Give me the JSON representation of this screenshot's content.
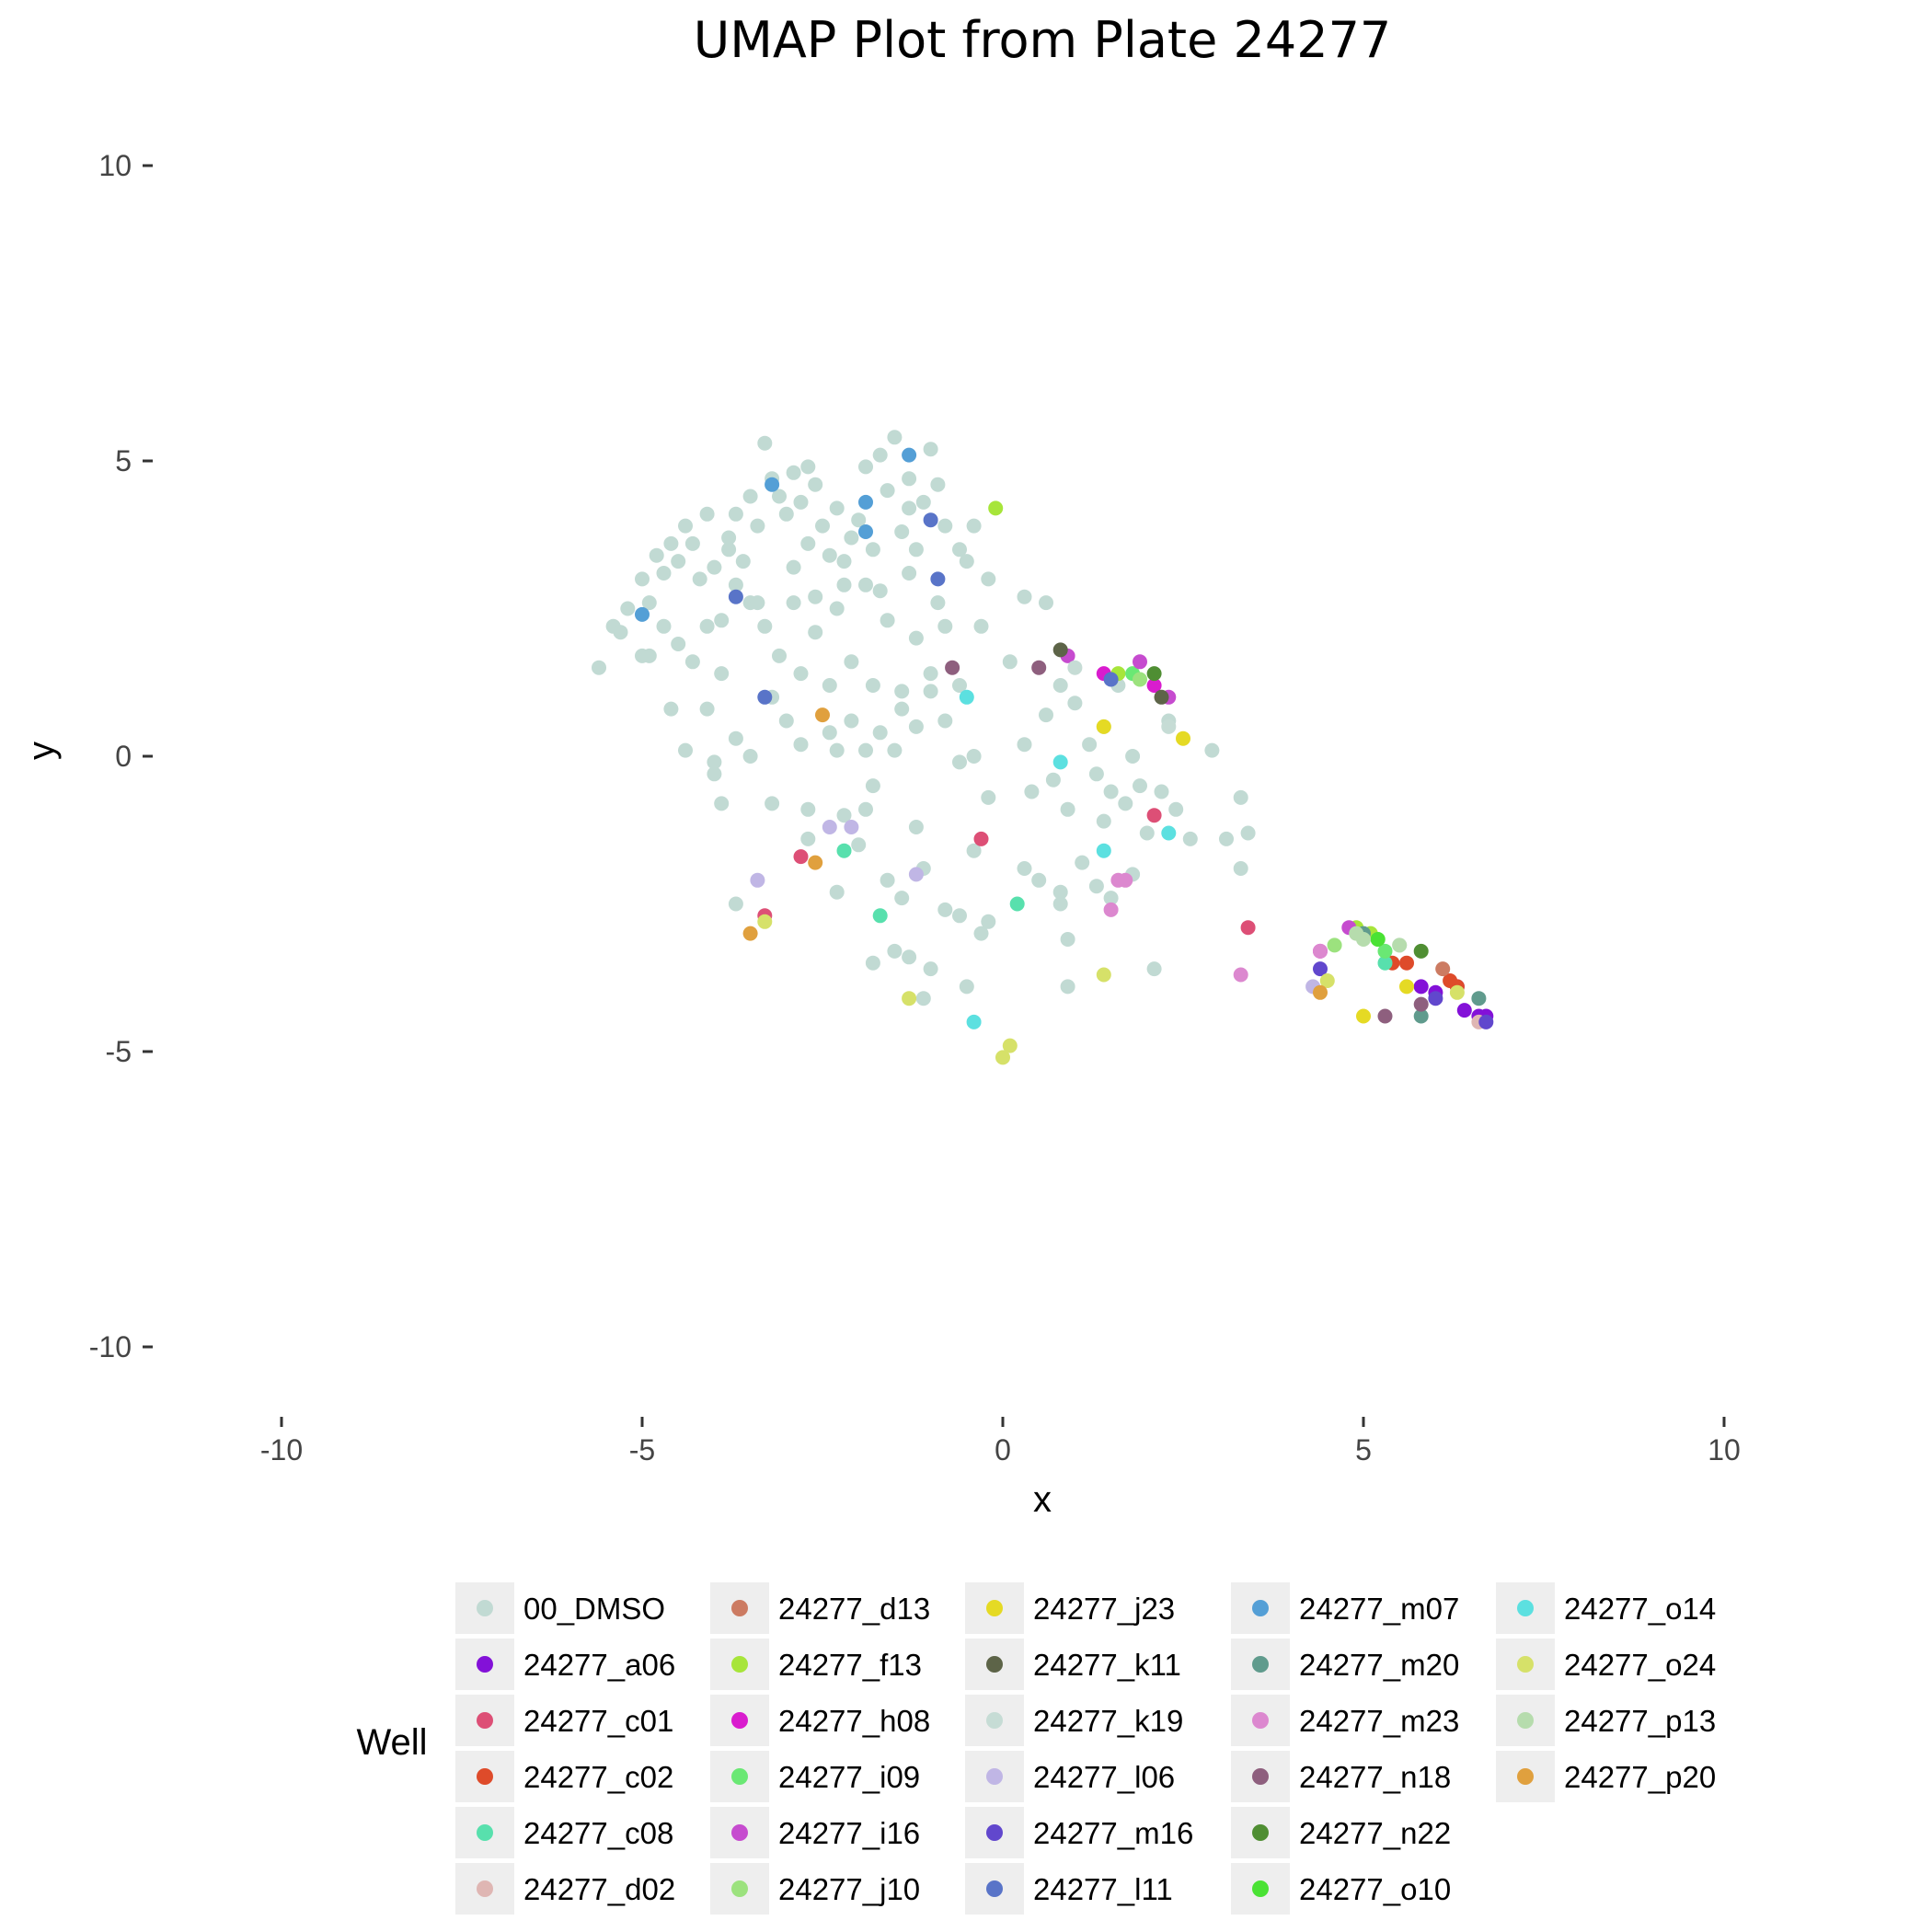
{
  "chart_data": {
    "type": "scatter",
    "title": "UMAP Plot from Plate 24277",
    "xlabel": "x",
    "ylabel": "y",
    "xlim": [
      -10,
      10
    ],
    "ylim": [
      -10,
      10
    ],
    "x_ticks": [
      "-10",
      "-5",
      "0",
      "5",
      "10"
    ],
    "y_ticks": [
      "10",
      "5",
      "0",
      "-5",
      "-10"
    ],
    "grid": false,
    "legend_title": "Well",
    "legend_position": "bottom",
    "series": [
      {
        "name": "00_DMSO",
        "color": "#c1dad3",
        "points": [
          [
            -5.6,
            1.5
          ],
          [
            -5.4,
            2.2
          ],
          [
            -5.3,
            2.1
          ],
          [
            -5.2,
            2.5
          ],
          [
            -5.0,
            3.0
          ],
          [
            -5.0,
            1.7
          ],
          [
            -4.9,
            2.6
          ],
          [
            -4.8,
            3.4
          ],
          [
            -4.7,
            3.1
          ],
          [
            -4.6,
            3.6
          ],
          [
            -4.5,
            3.3
          ],
          [
            -4.4,
            3.9
          ],
          [
            -4.3,
            3.6
          ],
          [
            -4.2,
            3.0
          ],
          [
            -4.1,
            4.1
          ],
          [
            -4.0,
            3.2
          ],
          [
            -3.9,
            2.3
          ],
          [
            -3.8,
            3.7
          ],
          [
            -3.7,
            4.1
          ],
          [
            -3.6,
            3.3
          ],
          [
            -3.5,
            4.4
          ],
          [
            -3.4,
            3.9
          ],
          [
            -3.3,
            5.3
          ],
          [
            -3.2,
            4.7
          ],
          [
            -3.1,
            4.4
          ],
          [
            -3.0,
            4.1
          ],
          [
            -2.9,
            4.8
          ],
          [
            -2.8,
            4.3
          ],
          [
            -2.7,
            3.6
          ],
          [
            -2.6,
            4.6
          ],
          [
            -2.5,
            3.9
          ],
          [
            -2.4,
            3.4
          ],
          [
            -2.3,
            4.2
          ],
          [
            -2.2,
            2.9
          ],
          [
            -2.1,
            3.7
          ],
          [
            -2.0,
            4.0
          ],
          [
            -1.9,
            4.9
          ],
          [
            -1.8,
            3.5
          ],
          [
            -1.7,
            5.1
          ],
          [
            -1.6,
            4.5
          ],
          [
            -1.5,
            5.4
          ],
          [
            -1.4,
            3.8
          ],
          [
            -1.3,
            4.7
          ],
          [
            -1.2,
            3.5
          ],
          [
            -1.1,
            4.3
          ],
          [
            -1.0,
            5.2
          ],
          [
            -0.9,
            4.6
          ],
          [
            -0.8,
            3.9
          ],
          [
            -0.6,
            3.5
          ],
          [
            -0.4,
            3.9
          ],
          [
            -0.3,
            2.2
          ],
          [
            -0.2,
            3.0
          ],
          [
            -4.9,
            1.7
          ],
          [
            -4.7,
            2.2
          ],
          [
            -4.5,
            1.9
          ],
          [
            -4.3,
            1.6
          ],
          [
            -4.1,
            2.2
          ],
          [
            -3.9,
            1.4
          ],
          [
            -3.7,
            2.9
          ],
          [
            -3.5,
            2.6
          ],
          [
            -3.3,
            2.2
          ],
          [
            -3.1,
            1.7
          ],
          [
            -2.9,
            2.6
          ],
          [
            -2.8,
            1.4
          ],
          [
            -2.6,
            2.1
          ],
          [
            -2.4,
            1.2
          ],
          [
            -2.3,
            2.5
          ],
          [
            -2.1,
            1.6
          ],
          [
            -1.9,
            2.9
          ],
          [
            -1.8,
            1.2
          ],
          [
            -1.6,
            2.3
          ],
          [
            -1.4,
            1.1
          ],
          [
            -1.2,
            2.0
          ],
          [
            -1.0,
            1.4
          ],
          [
            -0.8,
            2.2
          ],
          [
            -0.6,
            1.2
          ],
          [
            -4.6,
            0.8
          ],
          [
            -4.4,
            0.1
          ],
          [
            -4.1,
            0.8
          ],
          [
            -4.0,
            -0.3
          ],
          [
            -3.9,
            -0.8
          ],
          [
            -3.7,
            0.3
          ],
          [
            -3.5,
            0.0
          ],
          [
            -3.2,
            1.0
          ],
          [
            -3.0,
            0.6
          ],
          [
            -2.8,
            0.2
          ],
          [
            -2.7,
            -0.9
          ],
          [
            -2.4,
            0.4
          ],
          [
            -2.3,
            0.1
          ],
          [
            -2.2,
            -1.0
          ],
          [
            -2.1,
            0.6
          ],
          [
            -1.9,
            0.1
          ],
          [
            -1.8,
            -0.5
          ],
          [
            -1.7,
            0.4
          ],
          [
            -1.5,
            0.1
          ],
          [
            -1.4,
            0.8
          ],
          [
            -1.2,
            0.5
          ],
          [
            -1.0,
            1.1
          ],
          [
            -0.8,
            0.6
          ],
          [
            -0.6,
            -0.1
          ],
          [
            -0.4,
            0.0
          ],
          [
            -0.2,
            -0.7
          ],
          [
            0.1,
            1.6
          ],
          [
            0.3,
            0.2
          ],
          [
            0.4,
            -0.6
          ],
          [
            0.6,
            0.7
          ],
          [
            0.7,
            -0.4
          ],
          [
            0.8,
            1.2
          ],
          [
            0.9,
            -0.9
          ],
          [
            1.0,
            0.9
          ],
          [
            1.2,
            0.2
          ],
          [
            1.3,
            -0.3
          ],
          [
            1.4,
            0.5
          ],
          [
            1.5,
            -0.6
          ],
          [
            1.6,
            1.2
          ],
          [
            1.7,
            -0.8
          ],
          [
            1.8,
            0.0
          ],
          [
            1.9,
            -0.5
          ],
          [
            2.0,
            -1.3
          ],
          [
            2.2,
            -0.6
          ],
          [
            2.3,
            0.6
          ],
          [
            2.4,
            -0.9
          ],
          [
            2.6,
            -1.4
          ],
          [
            2.9,
            0.1
          ],
          [
            3.1,
            -1.4
          ],
          [
            3.3,
            -0.7
          ],
          [
            3.4,
            -1.3
          ],
          [
            3.3,
            -1.9
          ],
          [
            -3.7,
            -2.5
          ],
          [
            -3.2,
            -0.8
          ],
          [
            -2.7,
            -1.4
          ],
          [
            -2.3,
            -2.3
          ],
          [
            -2.0,
            -1.5
          ],
          [
            -1.8,
            -3.5
          ],
          [
            -1.6,
            -2.1
          ],
          [
            -1.5,
            -3.3
          ],
          [
            -1.4,
            -2.4
          ],
          [
            -1.3,
            -3.4
          ],
          [
            -1.2,
            -1.2
          ],
          [
            -1.1,
            -1.9
          ],
          [
            -1.0,
            -3.6
          ],
          [
            -0.8,
            -2.6
          ],
          [
            -0.6,
            -2.7
          ],
          [
            -0.5,
            -3.9
          ],
          [
            -0.4,
            -1.6
          ],
          [
            -0.3,
            -3.0
          ],
          [
            -0.2,
            -2.8
          ],
          [
            0.3,
            -1.9
          ],
          [
            0.5,
            -2.1
          ],
          [
            0.8,
            -2.3
          ],
          [
            0.9,
            -3.1
          ],
          [
            0.9,
            -3.9
          ],
          [
            1.1,
            -1.8
          ],
          [
            1.3,
            -2.2
          ],
          [
            1.5,
            -2.4
          ],
          [
            1.8,
            -2.0
          ],
          [
            2.1,
            -3.6
          ],
          [
            -1.9,
            -0.9
          ],
          [
            -1.1,
            -4.1
          ],
          [
            0.8,
            -2.5
          ],
          [
            1.4,
            -1.1
          ],
          [
            -4.0,
            -0.1
          ],
          [
            -3.4,
            2.6
          ],
          [
            -2.9,
            3.2
          ],
          [
            -2.6,
            2.7
          ],
          [
            -2.2,
            3.3
          ],
          [
            -1.7,
            2.8
          ],
          [
            -1.3,
            3.1
          ],
          [
            -0.9,
            2.6
          ],
          [
            -0.5,
            3.3
          ],
          [
            0.3,
            2.7
          ],
          [
            0.6,
            2.6
          ],
          [
            -1.3,
            4.2
          ],
          [
            -2.7,
            4.9
          ],
          [
            -3.8,
            3.5
          ]
        ]
      },
      {
        "name": "24277_a06",
        "color": "#8311d8",
        "points": [
          [
            5.8,
            -3.9
          ],
          [
            6.0,
            -4.0
          ],
          [
            6.3,
            -3.9
          ],
          [
            6.4,
            -4.3
          ],
          [
            6.6,
            -4.4
          ],
          [
            6.7,
            -4.4
          ]
        ]
      },
      {
        "name": "24277_c01",
        "color": "#dd4f76",
        "points": [
          [
            -3.3,
            -2.7
          ],
          [
            -2.8,
            -1.7
          ],
          [
            -0.3,
            -1.4
          ],
          [
            2.1,
            -1.0
          ],
          [
            3.4,
            -2.9
          ]
        ]
      },
      {
        "name": "24277_c02",
        "color": "#de4b2a",
        "points": [
          [
            5.4,
            -3.5
          ],
          [
            5.6,
            -3.5
          ],
          [
            6.2,
            -3.8
          ],
          [
            6.3,
            -3.9
          ]
        ]
      },
      {
        "name": "24277_c08",
        "color": "#58e0ad",
        "points": [
          [
            -2.2,
            -1.6
          ],
          [
            -1.7,
            -2.7
          ],
          [
            0.2,
            -2.5
          ],
          [
            5.3,
            -3.5
          ]
        ]
      },
      {
        "name": "24277_d02",
        "color": "#dfb6b3",
        "points": [
          [
            6.6,
            -4.5
          ]
        ]
      },
      {
        "name": "24277_d13",
        "color": "#cc7b62",
        "points": [
          [
            6.1,
            -3.6
          ]
        ]
      },
      {
        "name": "24277_f13",
        "color": "#a7e53a",
        "points": [
          [
            -0.1,
            4.2
          ],
          [
            1.6,
            1.4
          ],
          [
            4.9,
            -2.9
          ],
          [
            5.1,
            -3.0
          ]
        ]
      },
      {
        "name": "24277_h08",
        "color": "#d91cce",
        "points": [
          [
            1.4,
            1.4
          ],
          [
            2.1,
            1.2
          ],
          [
            4.4,
            -3.3
          ]
        ]
      },
      {
        "name": "24277_i09",
        "color": "#6ae874",
        "points": [
          [
            1.8,
            1.4
          ],
          [
            5.3,
            -3.3
          ]
        ]
      },
      {
        "name": "24277_i16",
        "color": "#c64bcf",
        "points": [
          [
            0.9,
            1.7
          ],
          [
            1.9,
            1.6
          ],
          [
            2.3,
            1.0
          ],
          [
            4.8,
            -2.9
          ]
        ]
      },
      {
        "name": "24277_j10",
        "color": "#9ce27e",
        "points": [
          [
            1.9,
            1.3
          ],
          [
            4.6,
            -3.2
          ],
          [
            5.2,
            -3.1
          ]
        ]
      },
      {
        "name": "24277_j23",
        "color": "#e5da24",
        "points": [
          [
            1.4,
            0.5
          ],
          [
            2.5,
            0.3
          ],
          [
            5.0,
            -4.4
          ],
          [
            5.6,
            -3.9
          ]
        ]
      },
      {
        "name": "24277_k11",
        "color": "#5d6448",
        "points": [
          [
            0.8,
            1.8
          ],
          [
            2.2,
            1.0
          ]
        ]
      },
      {
        "name": "24277_k19",
        "color": "#c6dcd5",
        "points": [
          [
            1.0,
            1.5
          ],
          [
            2.3,
            0.5
          ],
          [
            5.5,
            -3.2
          ]
        ]
      },
      {
        "name": "24277_l06",
        "color": "#c0b6e5",
        "points": [
          [
            -3.4,
            -2.1
          ],
          [
            -2.4,
            -1.2
          ],
          [
            -2.1,
            -1.2
          ],
          [
            -1.2,
            -2.0
          ],
          [
            4.3,
            -3.9
          ]
        ]
      },
      {
        "name": "24277_m16",
        "color": "#6147cd",
        "points": [
          [
            4.4,
            -3.6
          ],
          [
            6.0,
            -4.1
          ],
          [
            6.7,
            -4.5
          ]
        ]
      },
      {
        "name": "24277_l11",
        "color": "#5974c8",
        "points": [
          [
            -3.7,
            2.7
          ],
          [
            -3.3,
            1.0
          ],
          [
            -1.0,
            4.0
          ],
          [
            -0.9,
            3.0
          ],
          [
            1.5,
            1.3
          ]
        ]
      },
      {
        "name": "24277_m07",
        "color": "#549fd6",
        "points": [
          [
            -5.0,
            2.4
          ],
          [
            -3.2,
            4.6
          ],
          [
            -1.9,
            4.3
          ],
          [
            -1.9,
            3.8
          ],
          [
            -1.3,
            5.1
          ]
        ]
      },
      {
        "name": "24277_m20",
        "color": "#609b8d",
        "points": [
          [
            5.0,
            -3.0
          ],
          [
            5.8,
            -4.4
          ],
          [
            6.6,
            -4.1
          ]
        ]
      },
      {
        "name": "24277_m23",
        "color": "#dc88cf",
        "points": [
          [
            1.6,
            -2.1
          ],
          [
            1.7,
            -2.1
          ],
          [
            3.3,
            -3.7
          ],
          [
            4.4,
            -3.3
          ],
          [
            1.5,
            -2.6
          ]
        ]
      },
      {
        "name": "24277_n18",
        "color": "#8e5f7e",
        "points": [
          [
            -0.7,
            1.5
          ],
          [
            0.5,
            1.5
          ],
          [
            5.3,
            -4.4
          ],
          [
            5.8,
            -4.2
          ]
        ]
      },
      {
        "name": "24277_n22",
        "color": "#4f8e33",
        "points": [
          [
            2.1,
            1.4
          ],
          [
            5.8,
            -3.3
          ]
        ]
      },
      {
        "name": "24277_o10",
        "color": "#4ae234",
        "points": [
          [
            5.2,
            -3.1
          ]
        ]
      },
      {
        "name": "24277_o14",
        "color": "#5ce0e0",
        "points": [
          [
            -0.5,
            1.0
          ],
          [
            0.8,
            -0.1
          ],
          [
            1.4,
            -1.6
          ],
          [
            2.3,
            -1.3
          ],
          [
            -0.4,
            -4.5
          ]
        ]
      },
      {
        "name": "24277_o24",
        "color": "#d6e169",
        "points": [
          [
            -3.3,
            -2.8
          ],
          [
            -1.3,
            -4.1
          ],
          [
            0.0,
            -5.1
          ],
          [
            0.1,
            -4.9
          ],
          [
            1.4,
            -3.7
          ],
          [
            4.5,
            -3.8
          ],
          [
            6.3,
            -4.0
          ]
        ]
      },
      {
        "name": "24277_p13",
        "color": "#b6dcad",
        "points": [
          [
            5.0,
            -3.1
          ],
          [
            5.5,
            -3.2
          ],
          [
            4.9,
            -3.0
          ]
        ]
      },
      {
        "name": "24277_p20",
        "color": "#e0a03e",
        "points": [
          [
            -3.5,
            -3.0
          ],
          [
            -2.6,
            -1.8
          ],
          [
            -2.5,
            0.7
          ],
          [
            4.4,
            -4.0
          ]
        ]
      }
    ]
  }
}
